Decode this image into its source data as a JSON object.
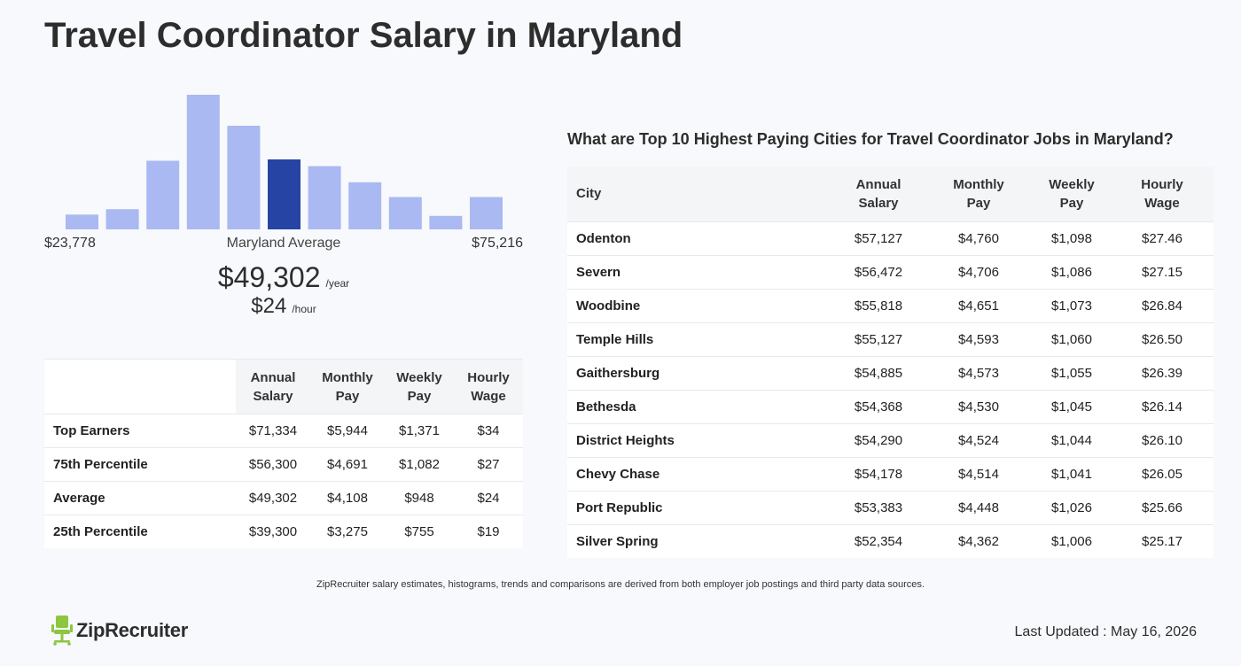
{
  "page": {
    "title": "Travel Coordinator Salary in Maryland",
    "cities_heading": "What are Top 10 Highest Paying Cities for Travel Coordinator Jobs in Maryland?",
    "disclaimer": "ZipRecruiter salary estimates, histograms, trends and comparisons are derived from both employer job postings and third party data sources.",
    "logo_text": "ZipRecruiter",
    "last_updated": "Last Updated : May 16, 2026"
  },
  "histogram": {
    "min_label": "$23,778",
    "center_label": "Maryland Average",
    "max_label": "$75,216",
    "average_year": "$49,302",
    "year_unit": "/year",
    "average_hour": "$24",
    "hour_unit": "/hour"
  },
  "colors": {
    "bar": "#aab9f2",
    "bar_highlight": "#2544a3",
    "logo_green": "#8dc63f"
  },
  "chart_data": {
    "type": "bar",
    "values": [
      11,
      15,
      51,
      100,
      77,
      52,
      47,
      35,
      24,
      10,
      24
    ],
    "highlight_index": 5,
    "ylim": [
      0,
      100
    ],
    "grid": false,
    "legend": "none"
  },
  "percentile_table": {
    "headers": [
      "",
      "Annual\nSalary",
      "Monthly\nPay",
      "Weekly\nPay",
      "Hourly\nWage"
    ],
    "rows": [
      {
        "name": "Top Earners",
        "annual": "$71,334",
        "monthly": "$5,944",
        "weekly": "$1,371",
        "hourly": "$34"
      },
      {
        "name": "75th Percentile",
        "annual": "$56,300",
        "monthly": "$4,691",
        "weekly": "$1,082",
        "hourly": "$27"
      },
      {
        "name": "Average",
        "annual": "$49,302",
        "monthly": "$4,108",
        "weekly": "$948",
        "hourly": "$24"
      },
      {
        "name": "25th Percentile",
        "annual": "$39,300",
        "monthly": "$3,275",
        "weekly": "$755",
        "hourly": "$19"
      }
    ]
  },
  "city_table": {
    "headers": [
      "City",
      "Annual\nSalary",
      "Monthly\nPay",
      "Weekly\nPay",
      "Hourly\nWage"
    ],
    "rows": [
      {
        "name": "Odenton",
        "annual": "$57,127",
        "monthly": "$4,760",
        "weekly": "$1,098",
        "hourly": "$27.46"
      },
      {
        "name": "Severn",
        "annual": "$56,472",
        "monthly": "$4,706",
        "weekly": "$1,086",
        "hourly": "$27.15"
      },
      {
        "name": "Woodbine",
        "annual": "$55,818",
        "monthly": "$4,651",
        "weekly": "$1,073",
        "hourly": "$26.84"
      },
      {
        "name": "Temple Hills",
        "annual": "$55,127",
        "monthly": "$4,593",
        "weekly": "$1,060",
        "hourly": "$26.50"
      },
      {
        "name": "Gaithersburg",
        "annual": "$54,885",
        "monthly": "$4,573",
        "weekly": "$1,055",
        "hourly": "$26.39"
      },
      {
        "name": "Bethesda",
        "annual": "$54,368",
        "monthly": "$4,530",
        "weekly": "$1,045",
        "hourly": "$26.14"
      },
      {
        "name": "District Heights",
        "annual": "$54,290",
        "monthly": "$4,524",
        "weekly": "$1,044",
        "hourly": "$26.10"
      },
      {
        "name": "Chevy Chase",
        "annual": "$54,178",
        "monthly": "$4,514",
        "weekly": "$1,041",
        "hourly": "$26.05"
      },
      {
        "name": "Port Republic",
        "annual": "$53,383",
        "monthly": "$4,448",
        "weekly": "$1,026",
        "hourly": "$25.66"
      },
      {
        "name": "Silver Spring",
        "annual": "$52,354",
        "monthly": "$4,362",
        "weekly": "$1,006",
        "hourly": "$25.17"
      }
    ]
  }
}
